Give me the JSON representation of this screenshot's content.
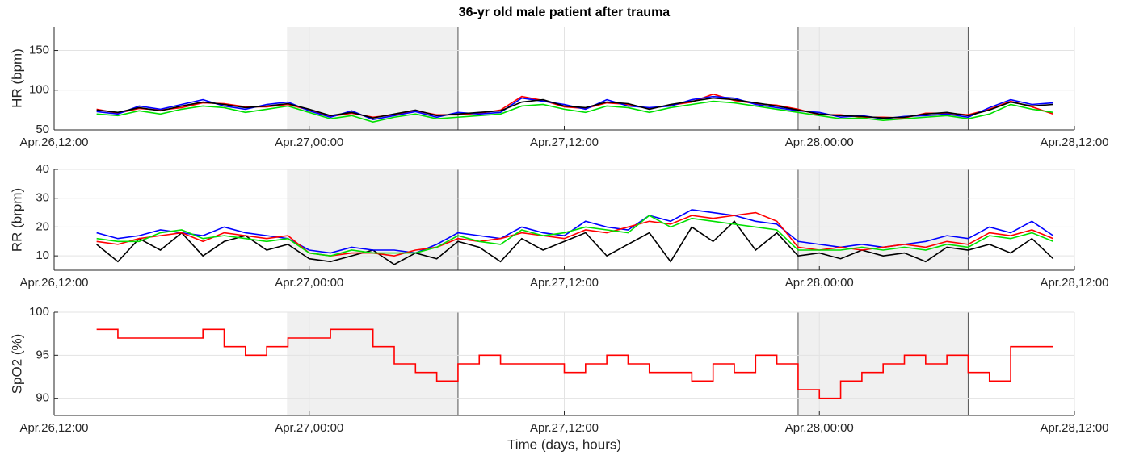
{
  "chart_data": [
    {
      "type": "line",
      "title": "36-yr old male patient after trauma",
      "ylabel": "HR (bpm)",
      "x": [
        "Apr.26,14:00",
        "Apr.26,15:00",
        "Apr.26,16:00",
        "Apr.26,17:00",
        "Apr.26,18:00",
        "Apr.26,19:00",
        "Apr.26,20:00",
        "Apr.26,21:00",
        "Apr.26,22:00",
        "Apr.26,23:00",
        "Apr.27,00:00",
        "Apr.27,01:00",
        "Apr.27,02:00",
        "Apr.27,03:00",
        "Apr.27,04:00",
        "Apr.27,05:00",
        "Apr.27,06:00",
        "Apr.27,07:00",
        "Apr.27,08:00",
        "Apr.27,09:00",
        "Apr.27,10:00",
        "Apr.27,11:00",
        "Apr.27,12:00",
        "Apr.27,13:00",
        "Apr.27,14:00",
        "Apr.27,15:00",
        "Apr.27,16:00",
        "Apr.27,17:00",
        "Apr.27,18:00",
        "Apr.27,19:00",
        "Apr.27,20:00",
        "Apr.27,21:00",
        "Apr.27,22:00",
        "Apr.27,23:00",
        "Apr.28,00:00",
        "Apr.28,01:00",
        "Apr.28,02:00",
        "Apr.28,03:00",
        "Apr.28,04:00",
        "Apr.28,05:00",
        "Apr.28,06:00",
        "Apr.28,07:00",
        "Apr.28,08:00",
        "Apr.28,09:00",
        "Apr.28,10:00",
        "Apr.28,11:00"
      ],
      "series": [
        {
          "color": "#ff0000",
          "values": [
            76,
            71,
            77,
            75,
            78,
            84,
            83,
            79,
            79,
            82,
            75,
            67,
            71,
            66,
            69,
            74,
            69,
            69,
            71,
            75,
            92,
            87,
            79,
            77,
            84,
            82,
            77,
            81,
            85,
            95,
            87,
            83,
            81,
            76,
            69,
            69,
            66,
            66,
            65,
            71,
            71,
            69,
            76,
            86,
            79,
            70
          ]
        },
        {
          "color": "#0000ff",
          "values": [
            73,
            70,
            80,
            76,
            82,
            88,
            80,
            76,
            82,
            85,
            74,
            66,
            74,
            63,
            68,
            73,
            66,
            72,
            70,
            72,
            90,
            86,
            82,
            76,
            88,
            80,
            78,
            80,
            88,
            92,
            90,
            82,
            78,
            74,
            72,
            66,
            68,
            64,
            67,
            68,
            70,
            66,
            78,
            88,
            82,
            84
          ]
        },
        {
          "color": "#00e000",
          "values": [
            70,
            68,
            74,
            70,
            76,
            80,
            78,
            72,
            76,
            80,
            72,
            64,
            68,
            60,
            66,
            70,
            64,
            66,
            68,
            70,
            80,
            82,
            76,
            72,
            80,
            78,
            72,
            78,
            82,
            86,
            84,
            80,
            76,
            72,
            68,
            64,
            65,
            62,
            64,
            66,
            68,
            64,
            70,
            82,
            76,
            72
          ]
        },
        {
          "color": "#000000",
          "values": [
            75,
            72,
            78,
            74,
            80,
            85,
            82,
            78,
            80,
            83,
            76,
            68,
            72,
            65,
            70,
            75,
            68,
            70,
            72,
            74,
            85,
            88,
            80,
            78,
            85,
            83,
            76,
            82,
            86,
            90,
            88,
            84,
            80,
            75,
            70,
            68,
            67,
            65,
            66,
            70,
            72,
            68,
            75,
            85,
            80,
            82
          ]
        }
      ],
      "xlim": [
        "Apr.26,12:00",
        "Apr.28,12:00"
      ],
      "xticks": [
        "Apr.26,12:00",
        "Apr.27,00:00",
        "Apr.27,12:00",
        "Apr.28,00:00",
        "Apr.28,12:00"
      ],
      "ylim": [
        50,
        180
      ],
      "yticks": [
        50,
        100,
        150
      ],
      "grid": true,
      "shaded": [
        [
          "Apr.26,23:00",
          "Apr.27,07:00"
        ],
        [
          "Apr.27,23:00",
          "Apr.28,07:00"
        ]
      ]
    },
    {
      "type": "line",
      "ylabel": "RR (brpm)",
      "x": [
        "Apr.26,14:00",
        "Apr.26,15:00",
        "Apr.26,16:00",
        "Apr.26,17:00",
        "Apr.26,18:00",
        "Apr.26,19:00",
        "Apr.26,20:00",
        "Apr.26,21:00",
        "Apr.26,22:00",
        "Apr.26,23:00",
        "Apr.27,00:00",
        "Apr.27,01:00",
        "Apr.27,02:00",
        "Apr.27,03:00",
        "Apr.27,04:00",
        "Apr.27,05:00",
        "Apr.27,06:00",
        "Apr.27,07:00",
        "Apr.27,08:00",
        "Apr.27,09:00",
        "Apr.27,10:00",
        "Apr.27,11:00",
        "Apr.27,12:00",
        "Apr.27,13:00",
        "Apr.27,14:00",
        "Apr.27,15:00",
        "Apr.27,16:00",
        "Apr.27,17:00",
        "Apr.27,18:00",
        "Apr.27,19:00",
        "Apr.27,20:00",
        "Apr.27,21:00",
        "Apr.27,22:00",
        "Apr.27,23:00",
        "Apr.28,00:00",
        "Apr.28,01:00",
        "Apr.28,02:00",
        "Apr.28,03:00",
        "Apr.28,04:00",
        "Apr.28,05:00",
        "Apr.28,06:00",
        "Apr.28,07:00",
        "Apr.28,08:00",
        "Apr.28,09:00",
        "Apr.28,10:00",
        "Apr.28,11:00"
      ],
      "series": [
        {
          "color": "#000000",
          "values": [
            14,
            8,
            16,
            12,
            18,
            10,
            15,
            17,
            12,
            14,
            9,
            8,
            10,
            12,
            7,
            11,
            9,
            15,
            13,
            8,
            16,
            12,
            15,
            18,
            10,
            14,
            18,
            8,
            20,
            15,
            22,
            12,
            18,
            10,
            11,
            9,
            12,
            10,
            11,
            8,
            13,
            12,
            14,
            11,
            16,
            9
          ]
        },
        {
          "color": "#0000ff",
          "values": [
            18,
            16,
            17,
            19,
            18,
            17,
            20,
            18,
            17,
            16,
            12,
            11,
            13,
            12,
            12,
            11,
            14,
            18,
            17,
            16,
            20,
            18,
            17,
            22,
            20,
            19,
            24,
            22,
            26,
            25,
            24,
            22,
            21,
            15,
            14,
            13,
            14,
            13,
            14,
            15,
            17,
            16,
            20,
            18,
            22,
            17
          ]
        },
        {
          "color": "#ff0000",
          "values": [
            15,
            14,
            16,
            17,
            18,
            15,
            18,
            17,
            16,
            17,
            11,
            10,
            11,
            11,
            10,
            12,
            13,
            16,
            15,
            16,
            18,
            17,
            16,
            19,
            18,
            20,
            22,
            21,
            24,
            23,
            24,
            25,
            22,
            13,
            12,
            13,
            12,
            13,
            14,
            13,
            15,
            14,
            18,
            17,
            19,
            16
          ]
        },
        {
          "color": "#00e000",
          "values": [
            16,
            15,
            15,
            18,
            19,
            16,
            17,
            16,
            15,
            16,
            11,
            10,
            12,
            11,
            11,
            11,
            13,
            17,
            15,
            14,
            19,
            17,
            18,
            20,
            19,
            18,
            24,
            20,
            23,
            22,
            21,
            20,
            19,
            12,
            12,
            12,
            13,
            12,
            13,
            12,
            14,
            13,
            17,
            16,
            18,
            15
          ]
        }
      ],
      "xlim": [
        "Apr.26,12:00",
        "Apr.28,12:00"
      ],
      "xticks": [
        "Apr.26,12:00",
        "Apr.27,00:00",
        "Apr.27,12:00",
        "Apr.28,00:00",
        "Apr.28,12:00"
      ],
      "ylim": [
        5,
        40
      ],
      "yticks": [
        10,
        20,
        30,
        40
      ],
      "grid": true,
      "shaded": [
        [
          "Apr.26,23:00",
          "Apr.27,07:00"
        ],
        [
          "Apr.27,23:00",
          "Apr.28,07:00"
        ]
      ]
    },
    {
      "type": "step",
      "ylabel": "SpO2 (%)",
      "xlabel": "Time (days, hours)",
      "x": [
        "Apr.26,14:00",
        "Apr.26,15:00",
        "Apr.26,16:00",
        "Apr.26,17:00",
        "Apr.26,18:00",
        "Apr.26,19:00",
        "Apr.26,20:00",
        "Apr.26,21:00",
        "Apr.26,22:00",
        "Apr.26,23:00",
        "Apr.27,00:00",
        "Apr.27,01:00",
        "Apr.27,02:00",
        "Apr.27,03:00",
        "Apr.27,04:00",
        "Apr.27,05:00",
        "Apr.27,06:00",
        "Apr.27,07:00",
        "Apr.27,08:00",
        "Apr.27,09:00",
        "Apr.27,10:00",
        "Apr.27,11:00",
        "Apr.27,12:00",
        "Apr.27,13:00",
        "Apr.27,14:00",
        "Apr.27,15:00",
        "Apr.27,16:00",
        "Apr.27,17:00",
        "Apr.27,18:00",
        "Apr.27,19:00",
        "Apr.27,20:00",
        "Apr.27,21:00",
        "Apr.27,22:00",
        "Apr.27,23:00",
        "Apr.28,00:00",
        "Apr.28,01:00",
        "Apr.28,02:00",
        "Apr.28,03:00",
        "Apr.28,04:00",
        "Apr.28,05:00",
        "Apr.28,06:00",
        "Apr.28,07:00",
        "Apr.28,08:00",
        "Apr.28,09:00",
        "Apr.28,10:00",
        "Apr.28,11:00"
      ],
      "series": [
        {
          "color": "#ff0000",
          "values": [
            98,
            97,
            97,
            97,
            97,
            98,
            96,
            95,
            96,
            97,
            97,
            98,
            98,
            96,
            94,
            93,
            92,
            94,
            95,
            94,
            94,
            94,
            93,
            94,
            95,
            94,
            93,
            93,
            92,
            94,
            93,
            95,
            94,
            91,
            90,
            92,
            93,
            94,
            95,
            94,
            95,
            93,
            92,
            96,
            96,
            96
          ]
        }
      ],
      "xlim": [
        "Apr.26,12:00",
        "Apr.28,12:00"
      ],
      "xticks": [
        "Apr.26,12:00",
        "Apr.27,00:00",
        "Apr.27,12:00",
        "Apr.28,00:00",
        "Apr.28,12:00"
      ],
      "ylim": [
        88,
        100
      ],
      "yticks": [
        90,
        95,
        100
      ],
      "grid": true,
      "shaded": [
        [
          "Apr.26,23:00",
          "Apr.27,07:00"
        ],
        [
          "Apr.27,23:00",
          "Apr.28,07:00"
        ]
      ]
    }
  ]
}
